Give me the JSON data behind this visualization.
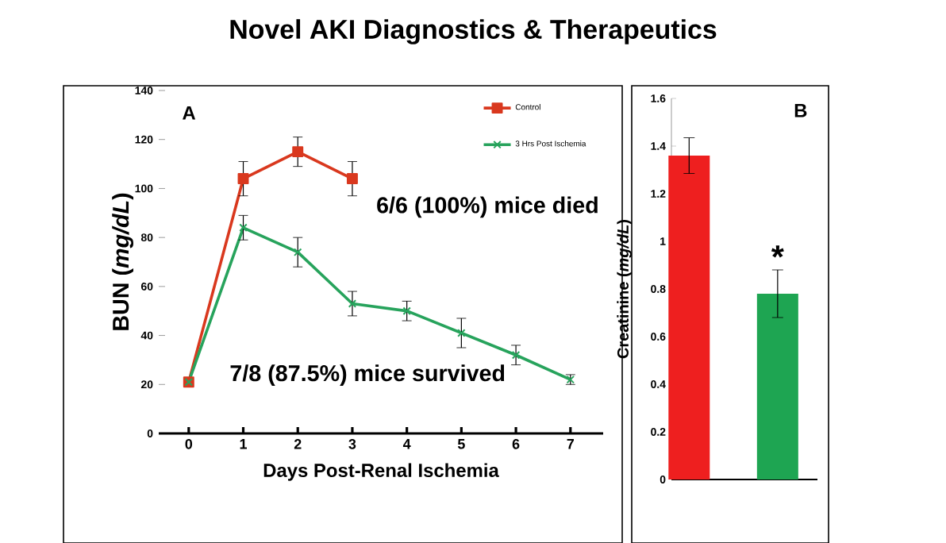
{
  "chart_data": [
    {
      "type": "line",
      "title": "Novel AKI Diagnostics & Therapeutics",
      "xlabel": "Days Post-Renal Ischemia",
      "ylabel": "BUN (*mg/dL*)",
      "x": [
        0,
        1,
        2,
        3,
        4,
        5,
        6,
        7
      ],
      "xlim": [
        -0.55,
        7.6
      ],
      "xticks": [
        0,
        1,
        2,
        3,
        4,
        5,
        6,
        7
      ],
      "ylim": [
        0,
        140
      ],
      "yticks": [
        0,
        20,
        40,
        60,
        80,
        100,
        120,
        140
      ],
      "series": [
        {
          "name": "Control",
          "color": "#d9381e",
          "marker": "square",
          "values": [
            21,
            104,
            115,
            104,
            null,
            null,
            null,
            null
          ],
          "errors": [
            null,
            7,
            6,
            7,
            null,
            null,
            null,
            null
          ]
        },
        {
          "name": "3 Hrs Post Ischemia",
          "color": "#27a35c",
          "marker": "cross",
          "values": [
            21,
            84,
            74,
            53,
            50,
            41,
            32,
            22
          ],
          "errors": [
            null,
            5,
            6,
            5,
            4,
            6,
            4,
            2
          ]
        }
      ],
      "legend": "top right",
      "grid": false,
      "annotations": [
        "A",
        "6/6 (100%) mice died",
        "7/8 (87.5%) mice survived"
      ]
    },
    {
      "type": "bar",
      "ylabel": "Creatinine (*mg/dL*)",
      "categories": [
        null,
        null
      ],
      "values": [
        1.36,
        0.78
      ],
      "errors": [
        0.075,
        0.1
      ],
      "colors": [
        "#ee1f1f",
        "#1ea552"
      ],
      "ylim": [
        0,
        1.6
      ],
      "yticks": [
        0,
        0.2,
        0.4,
        0.6,
        0.8,
        1,
        1.2,
        1.4,
        1.6
      ],
      "grid": false,
      "annotations": [
        "B",
        "*"
      ]
    }
  ]
}
